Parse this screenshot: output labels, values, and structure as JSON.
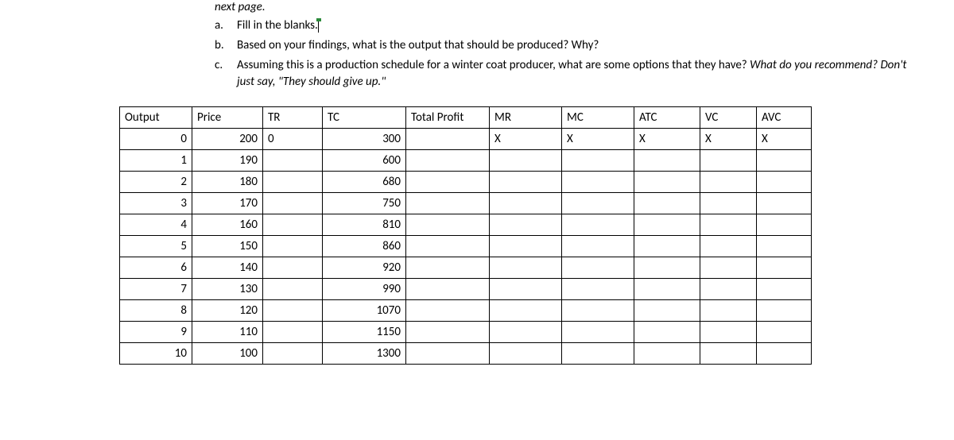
{
  "intro": {
    "topline": "next page.",
    "items": [
      {
        "marker": "a.",
        "text": "Fill in the blanks.",
        "cursor_after": true
      },
      {
        "marker": "b.",
        "text": "Based on your findings, what is the output that should be produced?  Why?"
      },
      {
        "marker": "c.",
        "text": "Assuming this is a production schedule for a winter coat producer, what are some options that they have?  ",
        "tail_italic": "What do you recommend?  Don't just say, \"They should give up.\""
      }
    ]
  },
  "table": {
    "columns": [
      "Output",
      "Price",
      "TR",
      "TC",
      "Total Profit",
      "MR",
      "MC",
      "ATC",
      "VC",
      "AVC"
    ],
    "col_classes": [
      "col-out",
      "col-price",
      "col-tr",
      "col-tc",
      "col-tp",
      "col-mr",
      "col-mc",
      "col-atc",
      "col-vc",
      "col-avc"
    ],
    "rows": [
      [
        "0",
        "200",
        "0",
        "300",
        "",
        "X",
        "X",
        "X",
        "X",
        "X"
      ],
      [
        "1",
        "190",
        "",
        "600",
        "",
        "",
        "",
        "",
        "",
        ""
      ],
      [
        "2",
        "180",
        "",
        "680",
        "",
        "",
        "",
        "",
        "",
        ""
      ],
      [
        "3",
        "170",
        "",
        "750",
        "",
        "",
        "",
        "",
        "",
        ""
      ],
      [
        "4",
        "160",
        "",
        "810",
        "",
        "",
        "",
        "",
        "",
        ""
      ],
      [
        "5",
        "150",
        "",
        "860",
        "",
        "",
        "",
        "",
        "",
        ""
      ],
      [
        "6",
        "140",
        "",
        "920",
        "",
        "",
        "",
        "",
        "",
        ""
      ],
      [
        "7",
        "130",
        "",
        "990",
        "",
        "",
        "",
        "",
        "",
        ""
      ],
      [
        "8",
        "120",
        "",
        "1070",
        "",
        "",
        "",
        "",
        "",
        ""
      ],
      [
        "9",
        "110",
        "",
        "1150",
        "",
        "",
        "",
        "",
        "",
        ""
      ],
      [
        "10",
        "100",
        "",
        "1300",
        "",
        "",
        "",
        "",
        "",
        ""
      ]
    ]
  }
}
